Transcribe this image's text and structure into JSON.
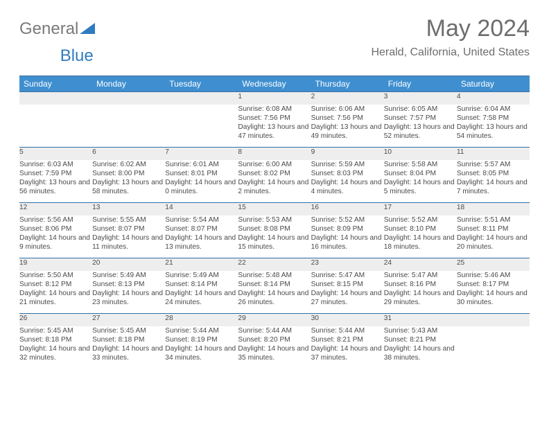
{
  "brand": {
    "part1": "General",
    "part2": "Blue"
  },
  "title": "May 2024",
  "location": "Herald, California, United States",
  "header_bg": "#3f8fd0",
  "header_border": "#3f6fa0",
  "row_border": "#2f6fa8",
  "daynum_bg": "#eeeeee",
  "text_color": "#4a4a4a",
  "columns": [
    "Sunday",
    "Monday",
    "Tuesday",
    "Wednesday",
    "Thursday",
    "Friday",
    "Saturday"
  ],
  "weeks": [
    [
      null,
      null,
      null,
      {
        "d": "1",
        "sr": "6:08 AM",
        "ss": "7:56 PM",
        "dl": "13 hours and 47 minutes."
      },
      {
        "d": "2",
        "sr": "6:06 AM",
        "ss": "7:56 PM",
        "dl": "13 hours and 49 minutes."
      },
      {
        "d": "3",
        "sr": "6:05 AM",
        "ss": "7:57 PM",
        "dl": "13 hours and 52 minutes."
      },
      {
        "d": "4",
        "sr": "6:04 AM",
        "ss": "7:58 PM",
        "dl": "13 hours and 54 minutes."
      }
    ],
    [
      {
        "d": "5",
        "sr": "6:03 AM",
        "ss": "7:59 PM",
        "dl": "13 hours and 56 minutes."
      },
      {
        "d": "6",
        "sr": "6:02 AM",
        "ss": "8:00 PM",
        "dl": "13 hours and 58 minutes."
      },
      {
        "d": "7",
        "sr": "6:01 AM",
        "ss": "8:01 PM",
        "dl": "14 hours and 0 minutes."
      },
      {
        "d": "8",
        "sr": "6:00 AM",
        "ss": "8:02 PM",
        "dl": "14 hours and 2 minutes."
      },
      {
        "d": "9",
        "sr": "5:59 AM",
        "ss": "8:03 PM",
        "dl": "14 hours and 4 minutes."
      },
      {
        "d": "10",
        "sr": "5:58 AM",
        "ss": "8:04 PM",
        "dl": "14 hours and 5 minutes."
      },
      {
        "d": "11",
        "sr": "5:57 AM",
        "ss": "8:05 PM",
        "dl": "14 hours and 7 minutes."
      }
    ],
    [
      {
        "d": "12",
        "sr": "5:56 AM",
        "ss": "8:06 PM",
        "dl": "14 hours and 9 minutes."
      },
      {
        "d": "13",
        "sr": "5:55 AM",
        "ss": "8:07 PM",
        "dl": "14 hours and 11 minutes."
      },
      {
        "d": "14",
        "sr": "5:54 AM",
        "ss": "8:07 PM",
        "dl": "14 hours and 13 minutes."
      },
      {
        "d": "15",
        "sr": "5:53 AM",
        "ss": "8:08 PM",
        "dl": "14 hours and 15 minutes."
      },
      {
        "d": "16",
        "sr": "5:52 AM",
        "ss": "8:09 PM",
        "dl": "14 hours and 16 minutes."
      },
      {
        "d": "17",
        "sr": "5:52 AM",
        "ss": "8:10 PM",
        "dl": "14 hours and 18 minutes."
      },
      {
        "d": "18",
        "sr": "5:51 AM",
        "ss": "8:11 PM",
        "dl": "14 hours and 20 minutes."
      }
    ],
    [
      {
        "d": "19",
        "sr": "5:50 AM",
        "ss": "8:12 PM",
        "dl": "14 hours and 21 minutes."
      },
      {
        "d": "20",
        "sr": "5:49 AM",
        "ss": "8:13 PM",
        "dl": "14 hours and 23 minutes."
      },
      {
        "d": "21",
        "sr": "5:49 AM",
        "ss": "8:14 PM",
        "dl": "14 hours and 24 minutes."
      },
      {
        "d": "22",
        "sr": "5:48 AM",
        "ss": "8:14 PM",
        "dl": "14 hours and 26 minutes."
      },
      {
        "d": "23",
        "sr": "5:47 AM",
        "ss": "8:15 PM",
        "dl": "14 hours and 27 minutes."
      },
      {
        "d": "24",
        "sr": "5:47 AM",
        "ss": "8:16 PM",
        "dl": "14 hours and 29 minutes."
      },
      {
        "d": "25",
        "sr": "5:46 AM",
        "ss": "8:17 PM",
        "dl": "14 hours and 30 minutes."
      }
    ],
    [
      {
        "d": "26",
        "sr": "5:45 AM",
        "ss": "8:18 PM",
        "dl": "14 hours and 32 minutes."
      },
      {
        "d": "27",
        "sr": "5:45 AM",
        "ss": "8:18 PM",
        "dl": "14 hours and 33 minutes."
      },
      {
        "d": "28",
        "sr": "5:44 AM",
        "ss": "8:19 PM",
        "dl": "14 hours and 34 minutes."
      },
      {
        "d": "29",
        "sr": "5:44 AM",
        "ss": "8:20 PM",
        "dl": "14 hours and 35 minutes."
      },
      {
        "d": "30",
        "sr": "5:44 AM",
        "ss": "8:21 PM",
        "dl": "14 hours and 37 minutes."
      },
      {
        "d": "31",
        "sr": "5:43 AM",
        "ss": "8:21 PM",
        "dl": "14 hours and 38 minutes."
      },
      null
    ]
  ],
  "labels": {
    "sunrise": "Sunrise:",
    "sunset": "Sunset:",
    "daylight": "Daylight:"
  }
}
